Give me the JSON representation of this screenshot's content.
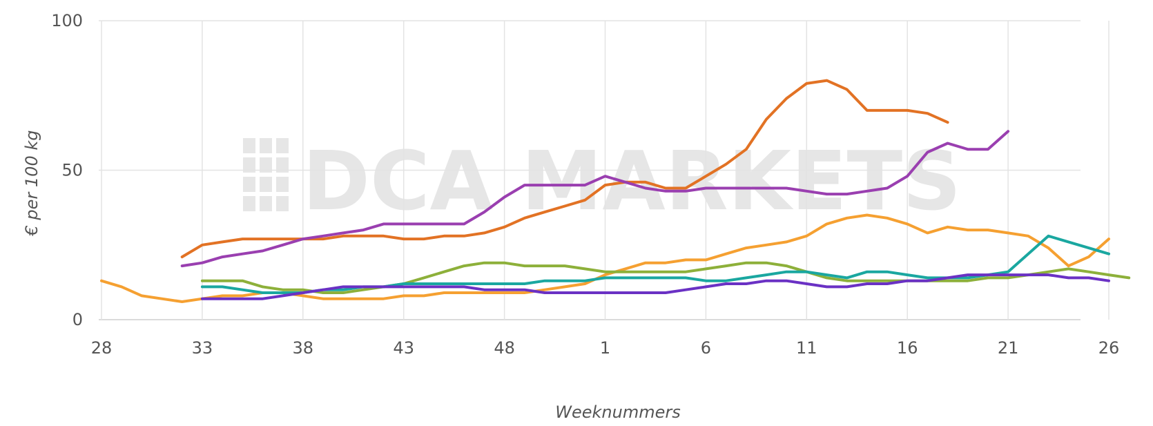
{
  "chart_data": {
    "type": "line",
    "xlabel": "Weeknummers",
    "ylabel": "€ per 100 kg",
    "ylim": [
      0,
      100
    ],
    "y_ticks": [
      "0",
      "50",
      "100"
    ],
    "x_ticks": [
      "28",
      "33",
      "38",
      "43",
      "48",
      "1",
      "6",
      "11",
      "16",
      "21",
      "26"
    ],
    "x_axis_note": "Seasonal week axis from week 28 through week 26 of the following year",
    "grid": true,
    "watermark": "DCA MARKETS",
    "series": [
      {
        "color": "#e27224",
        "x": [
          "32",
          "33",
          "34",
          "35",
          "36",
          "37",
          "38",
          "39",
          "40",
          "41",
          "42",
          "43",
          "44",
          "45",
          "46",
          "47",
          "48",
          "49",
          "50",
          "51",
          "52",
          "1",
          "2",
          "3",
          "4",
          "5",
          "6",
          "7",
          "8",
          "9",
          "10",
          "11",
          "12",
          "13",
          "14",
          "15",
          "16",
          "17",
          "18"
        ],
        "values": [
          21,
          25,
          26,
          27,
          27,
          27,
          27,
          27,
          28,
          28,
          28,
          27,
          27,
          28,
          28,
          29,
          31,
          34,
          36,
          38,
          40,
          45,
          46,
          46,
          44,
          44,
          48,
          52,
          57,
          67,
          74,
          79,
          80,
          77,
          70,
          70,
          70,
          69,
          66
        ]
      },
      {
        "color": "#9a3fb0",
        "x": [
          "32",
          "33",
          "34",
          "35",
          "36",
          "37",
          "38",
          "39",
          "40",
          "41",
          "42",
          "43",
          "44",
          "45",
          "46",
          "47",
          "48",
          "49",
          "50",
          "51",
          "52",
          "1",
          "2",
          "3",
          "4",
          "5",
          "6",
          "7",
          "8",
          "9",
          "10",
          "11",
          "12",
          "13",
          "14",
          "15",
          "16",
          "17",
          "18",
          "19",
          "20",
          "21"
        ],
        "values": [
          18,
          19,
          21,
          22,
          23,
          25,
          27,
          28,
          29,
          30,
          32,
          32,
          32,
          32,
          32,
          36,
          41,
          45,
          45,
          45,
          45,
          48,
          46,
          44,
          43,
          43,
          44,
          44,
          44,
          44,
          44,
          43,
          42,
          42,
          43,
          44,
          48,
          56,
          59,
          57,
          57,
          63
        ]
      },
      {
        "color": "#f5a031",
        "x": [
          "28",
          "29",
          "30",
          "31",
          "32",
          "33",
          "34",
          "35",
          "36",
          "37",
          "38",
          "39",
          "40",
          "41",
          "42",
          "43",
          "44",
          "45",
          "46",
          "47",
          "48",
          "49",
          "50",
          "51",
          "52",
          "1",
          "2",
          "3",
          "4",
          "5",
          "6",
          "7",
          "8",
          "9",
          "10",
          "11",
          "12",
          "13",
          "14",
          "15",
          "16",
          "17",
          "18",
          "19",
          "20",
          "21",
          "22",
          "23",
          "24",
          "25",
          "26"
        ],
        "values": [
          13,
          11,
          8,
          7,
          6,
          7,
          8,
          8,
          9,
          9,
          8,
          7,
          7,
          7,
          7,
          8,
          8,
          9,
          9,
          9,
          9,
          9,
          10,
          11,
          12,
          15,
          17,
          19,
          19,
          20,
          20,
          22,
          24,
          25,
          26,
          28,
          32,
          34,
          35,
          34,
          32,
          29,
          31,
          30,
          30,
          29,
          28,
          24,
          18,
          21,
          27
        ]
      },
      {
        "color": "#8db03a",
        "x": [
          "33",
          "34",
          "35",
          "36",
          "37",
          "38",
          "39",
          "40",
          "41",
          "42",
          "43",
          "44",
          "45",
          "46",
          "47",
          "48",
          "49",
          "50",
          "51",
          "52",
          "1",
          "2",
          "3",
          "4",
          "5",
          "6",
          "7",
          "8",
          "9",
          "10",
          "11",
          "12",
          "13",
          "14",
          "15",
          "16",
          "17",
          "18",
          "19",
          "20",
          "21",
          "22",
          "23",
          "24",
          "25",
          "26",
          "27"
        ],
        "values": [
          13,
          13,
          13,
          11,
          10,
          10,
          9,
          9,
          10,
          11,
          12,
          14,
          16,
          18,
          19,
          19,
          18,
          18,
          18,
          17,
          16,
          16,
          16,
          16,
          16,
          17,
          18,
          19,
          19,
          18,
          16,
          14,
          13,
          13,
          13,
          13,
          13,
          13,
          13,
          14,
          14,
          15,
          16,
          17,
          16,
          15,
          14
        ]
      },
      {
        "color": "#1aa7a0",
        "x": [
          "33",
          "34",
          "35",
          "36",
          "37",
          "38",
          "39",
          "40",
          "41",
          "42",
          "43",
          "44",
          "45",
          "46",
          "47",
          "48",
          "49",
          "50",
          "51",
          "52",
          "1",
          "2",
          "3",
          "4",
          "5",
          "6",
          "7",
          "8",
          "9",
          "10",
          "11",
          "12",
          "13",
          "14",
          "15",
          "16",
          "17",
          "18",
          "19",
          "20",
          "21",
          "22",
          "23",
          "24",
          "25",
          "26"
        ],
        "values": [
          11,
          11,
          10,
          9,
          9,
          9,
          10,
          10,
          11,
          11,
          12,
          12,
          12,
          12,
          12,
          12,
          12,
          13,
          13,
          13,
          14,
          14,
          14,
          14,
          14,
          13,
          13,
          14,
          15,
          16,
          16,
          15,
          14,
          16,
          16,
          15,
          14,
          14,
          14,
          15,
          16,
          22,
          28,
          26,
          24,
          22
        ]
      },
      {
        "color": "#6a31c4",
        "x": [
          "33",
          "34",
          "35",
          "36",
          "37",
          "38",
          "39",
          "40",
          "41",
          "42",
          "43",
          "44",
          "45",
          "46",
          "47",
          "48",
          "49",
          "50",
          "51",
          "52",
          "1",
          "2",
          "3",
          "4",
          "5",
          "6",
          "7",
          "8",
          "9",
          "10",
          "11",
          "12",
          "13",
          "14",
          "15",
          "16",
          "17",
          "18",
          "19",
          "20",
          "21",
          "22",
          "23",
          "24",
          "25",
          "26"
        ],
        "values": [
          7,
          7,
          7,
          7,
          8,
          9,
          10,
          11,
          11,
          11,
          11,
          11,
          11,
          11,
          10,
          10,
          10,
          9,
          9,
          9,
          9,
          9,
          9,
          9,
          10,
          11,
          12,
          12,
          13,
          13,
          12,
          11,
          11,
          12,
          12,
          13,
          13,
          14,
          15,
          15,
          15,
          15,
          15,
          14,
          14,
          13
        ]
      }
    ]
  }
}
